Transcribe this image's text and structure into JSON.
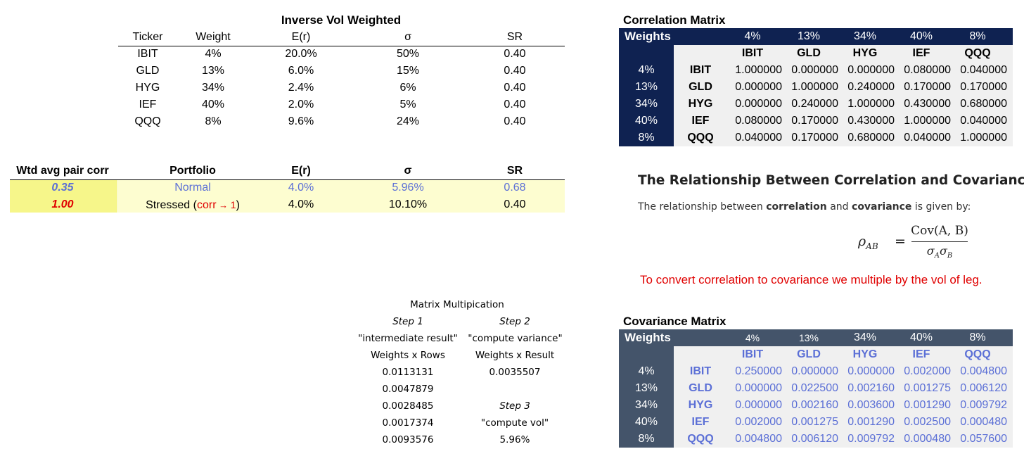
{
  "inverse_vol": {
    "title": "Inverse Vol Weighted",
    "headers": [
      "Ticker",
      "Weight",
      "E(r)",
      "σ",
      "SR"
    ],
    "rows": [
      [
        "IBIT",
        "4%",
        "20.0%",
        "50%",
        "0.40"
      ],
      [
        "GLD",
        "13%",
        "6.0%",
        "15%",
        "0.40"
      ],
      [
        "HYG",
        "34%",
        "2.4%",
        "6%",
        "0.40"
      ],
      [
        "IEF",
        "40%",
        "2.0%",
        "5%",
        "0.40"
      ],
      [
        "QQQ",
        "8%",
        "9.6%",
        "24%",
        "0.40"
      ]
    ]
  },
  "summary": {
    "headers": [
      "Wtd avg pair corr",
      "Portfolio",
      "E(r)",
      "σ",
      "SR"
    ],
    "normal": {
      "corr": "0.35",
      "portfolio": "Normal",
      "er": "4.0%",
      "vol": "5.96%",
      "sr": "0.68"
    },
    "stressed": {
      "corr": "1.00",
      "portfolio_prefix": "Stressed (",
      "portfolio_red": "corr",
      "arrow": "→",
      "one": "1",
      "portfolio_suffix": ")",
      "er": "4.0%",
      "vol": "10.10%",
      "sr": "0.40"
    }
  },
  "correlation": {
    "title": "Correlation Matrix",
    "weights_label": "Weights",
    "weights": [
      "4%",
      "13%",
      "34%",
      "40%",
      "8%"
    ],
    "tickers": [
      "IBIT",
      "GLD",
      "HYG",
      "IEF",
      "QQQ"
    ],
    "matrix": [
      [
        "1.000000",
        "0.000000",
        "0.000000",
        "0.080000",
        "0.040000"
      ],
      [
        "0.000000",
        "1.000000",
        "0.240000",
        "0.170000",
        "0.170000"
      ],
      [
        "0.000000",
        "0.240000",
        "1.000000",
        "0.430000",
        "0.680000"
      ],
      [
        "0.080000",
        "0.170000",
        "0.430000",
        "1.000000",
        "0.040000"
      ],
      [
        "0.040000",
        "0.170000",
        "0.680000",
        "0.040000",
        "1.000000"
      ]
    ]
  },
  "relationship": {
    "heading": "The Relationship Between Correlation and Covariance",
    "text_prefix": "The relationship between ",
    "bold1": "correlation",
    "text_mid": " and ",
    "bold2": "covariance",
    "text_suffix": " is given by:",
    "formula_lhs": "ρ",
    "formula_sub": "AB",
    "formula_eq": "=",
    "formula_num": "Cov(A, B)",
    "formula_den_a": "σ",
    "formula_den_asub": "A",
    "formula_den_b": "σ",
    "formula_den_bsub": "B",
    "note": "To convert correlation to covariance we multiple by the vol of leg."
  },
  "matrix_mult": {
    "title": "Matrix Multipication",
    "step1": "Step 1",
    "step2": "Step 2",
    "step1_desc": "\"intermediate result\"",
    "step2_desc": "\"compute variance\"",
    "step1_col": "Weights x Rows",
    "step2_col": "Weights x Result",
    "values": [
      "0.0113131",
      "0.0047879",
      "0.0028485",
      "0.0017374",
      "0.0093576"
    ],
    "variance": "0.0035507",
    "step3": "Step 3",
    "step3_desc": "\"compute vol\"",
    "vol": "5.96%"
  },
  "covariance": {
    "title": "Covariance Matrix",
    "weights_label": "Weights",
    "weights": [
      "4%",
      "13%",
      "34%",
      "40%",
      "8%"
    ],
    "tickers": [
      "IBIT",
      "GLD",
      "HYG",
      "IEF",
      "QQQ"
    ],
    "matrix": [
      [
        "0.250000",
        "0.000000",
        "0.000000",
        "0.002000",
        "0.004800"
      ],
      [
        "0.000000",
        "0.022500",
        "0.002160",
        "0.001275",
        "0.006120"
      ],
      [
        "0.000000",
        "0.002160",
        "0.003600",
        "0.001290",
        "0.009792"
      ],
      [
        "0.002000",
        "0.001275",
        "0.001290",
        "0.002500",
        "0.000480"
      ],
      [
        "0.004800",
        "0.006120",
        "0.009792",
        "0.000480",
        "0.057600"
      ]
    ]
  },
  "colors": {
    "navy": "#0f2251",
    "slate": "#44546a",
    "blue_text": "#5b6fd6",
    "red": "#e00000",
    "yellow_light": "#fdfdd0",
    "yellow": "#f6f68a"
  }
}
